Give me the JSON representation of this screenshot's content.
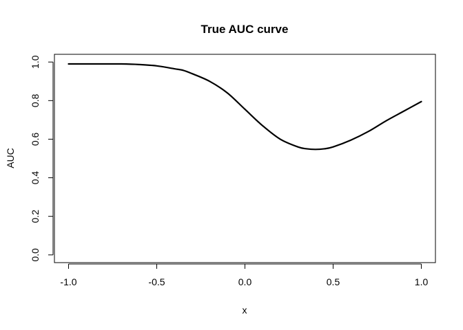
{
  "chart_data": {
    "type": "line",
    "title": "True AUC curve",
    "xlabel": "x",
    "ylabel": "AUC",
    "xlim": [
      -1.08,
      1.08
    ],
    "ylim": [
      -0.04,
      1.04
    ],
    "xticks": [
      -1.0,
      -0.5,
      0.0,
      0.5,
      1.0
    ],
    "xtick_labels": [
      "-1.0",
      "-0.5",
      "0.0",
      "0.5",
      "1.0"
    ],
    "yticks": [
      0.0,
      0.2,
      0.4,
      0.6,
      0.8,
      1.0
    ],
    "ytick_labels": [
      "0.0",
      "0.2",
      "0.4",
      "0.6",
      "0.8",
      "1.0"
    ],
    "grid": false,
    "series": [
      {
        "color": "#000000",
        "x": [
          -1.0,
          -0.9,
          -0.8,
          -0.7,
          -0.6,
          -0.5,
          -0.4,
          -0.35,
          -0.3,
          -0.2,
          -0.1,
          0.0,
          0.1,
          0.2,
          0.3,
          0.35,
          0.4,
          0.45,
          0.5,
          0.6,
          0.7,
          0.8,
          0.9,
          1.0
        ],
        "y": [
          0.99,
          0.99,
          0.99,
          0.99,
          0.987,
          0.98,
          0.965,
          0.957,
          0.94,
          0.9,
          0.84,
          0.755,
          0.67,
          0.6,
          0.56,
          0.55,
          0.547,
          0.55,
          0.56,
          0.595,
          0.64,
          0.695,
          0.745,
          0.795
        ]
      }
    ]
  }
}
